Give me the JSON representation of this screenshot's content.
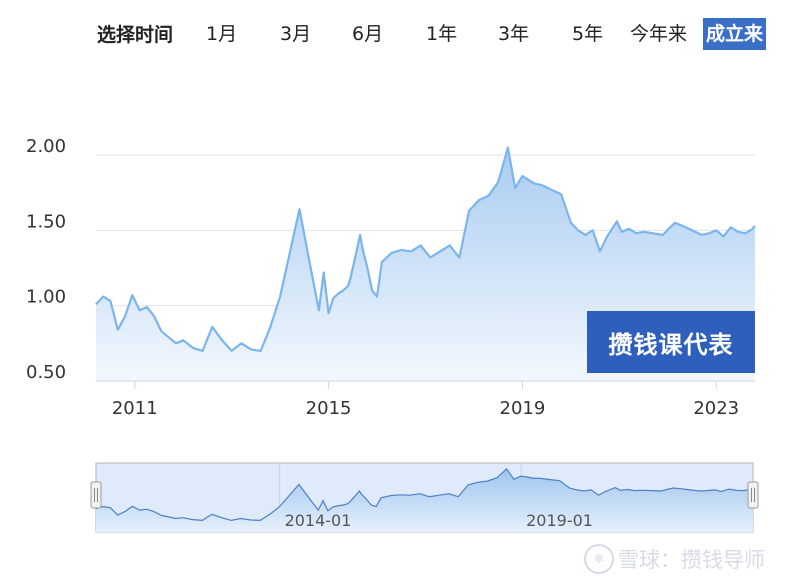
{
  "range_selector": {
    "label": "选择时间",
    "buttons": [
      "1月",
      "3月",
      "6月",
      "1年",
      "3年",
      "5年",
      "今年来",
      "成立来"
    ],
    "active_index": 7
  },
  "badge": {
    "text": "攒钱课代表"
  },
  "watermark": {
    "text": "雪球：攒钱导师"
  },
  "colors": {
    "line": "#7cb5ec",
    "fill_top": "#a9ccf1",
    "fill_bottom": "#f3f8fe",
    "active_button": "#3b6fc7",
    "badge": "#2f5fbd"
  },
  "chart_data": {
    "type": "area",
    "xlabel": "",
    "ylabel": "",
    "x_range": [
      2010.2,
      2023.8
    ],
    "ylim": [
      0.5,
      2.0
    ],
    "y_ticks": [
      0.5,
      1.0,
      1.5,
      2.0
    ],
    "y_tick_labels": [
      "0.50",
      "1.00",
      "1.50",
      "2.00"
    ],
    "x_ticks": [
      2011,
      2015,
      2019,
      2023
    ],
    "x_tick_labels": [
      "2011",
      "2015",
      "2019",
      "2023"
    ],
    "grid": true,
    "series": [
      {
        "x": [
          2010.2,
          2010.35,
          2010.5,
          2010.65,
          2010.8,
          2010.95,
          2011.1,
          2011.25,
          2011.4,
          2011.55,
          2011.7,
          2011.85,
          2012.0,
          2012.2,
          2012.4,
          2012.6,
          2012.8,
          2013.0,
          2013.2,
          2013.4,
          2013.6,
          2013.8,
          2014.0,
          2014.2,
          2014.4,
          2014.6,
          2014.8,
          2014.9,
          2015.0,
          2015.1,
          2015.2,
          2015.3,
          2015.4,
          2015.45,
          2015.55,
          2015.65,
          2015.7,
          2015.8,
          2015.9,
          2016.0,
          2016.1,
          2016.3,
          2016.5,
          2016.7,
          2016.9,
          2017.1,
          2017.3,
          2017.5,
          2017.7,
          2017.9,
          2018.1,
          2018.3,
          2018.5,
          2018.7,
          2018.85,
          2019.0,
          2019.1,
          2019.25,
          2019.4,
          2019.6,
          2019.8,
          2020.0,
          2020.15,
          2020.3,
          2020.45,
          2020.6,
          2020.75,
          2020.95,
          2021.05,
          2021.2,
          2021.35,
          2021.5,
          2021.7,
          2021.9,
          2022.05,
          2022.15,
          2022.3,
          2022.5,
          2022.7,
          2022.85,
          2023.0,
          2023.15,
          2023.3,
          2023.45,
          2023.6,
          2023.75,
          2023.8
        ],
        "y": [
          1.01,
          1.06,
          1.03,
          0.84,
          0.93,
          1.07,
          0.97,
          0.99,
          0.93,
          0.83,
          0.79,
          0.75,
          0.77,
          0.72,
          0.7,
          0.86,
          0.77,
          0.7,
          0.75,
          0.71,
          0.7,
          0.86,
          1.06,
          1.35,
          1.64,
          1.3,
          0.97,
          1.22,
          0.95,
          1.05,
          1.08,
          1.1,
          1.13,
          1.18,
          1.32,
          1.47,
          1.38,
          1.25,
          1.1,
          1.06,
          1.29,
          1.35,
          1.37,
          1.36,
          1.4,
          1.32,
          1.36,
          1.4,
          1.32,
          1.63,
          1.7,
          1.73,
          1.82,
          2.05,
          1.78,
          1.86,
          1.84,
          1.81,
          1.8,
          1.77,
          1.74,
          1.55,
          1.5,
          1.47,
          1.5,
          1.36,
          1.46,
          1.56,
          1.49,
          1.51,
          1.48,
          1.49,
          1.48,
          1.47,
          1.52,
          1.55,
          1.53,
          1.5,
          1.47,
          1.48,
          1.5,
          1.46,
          1.52,
          1.49,
          1.48,
          1.51,
          1.53
        ]
      }
    ],
    "navigator": {
      "labels": [
        "2014-01",
        "2019-01"
      ],
      "label_x": [
        2014.0,
        2019.0
      ]
    }
  }
}
